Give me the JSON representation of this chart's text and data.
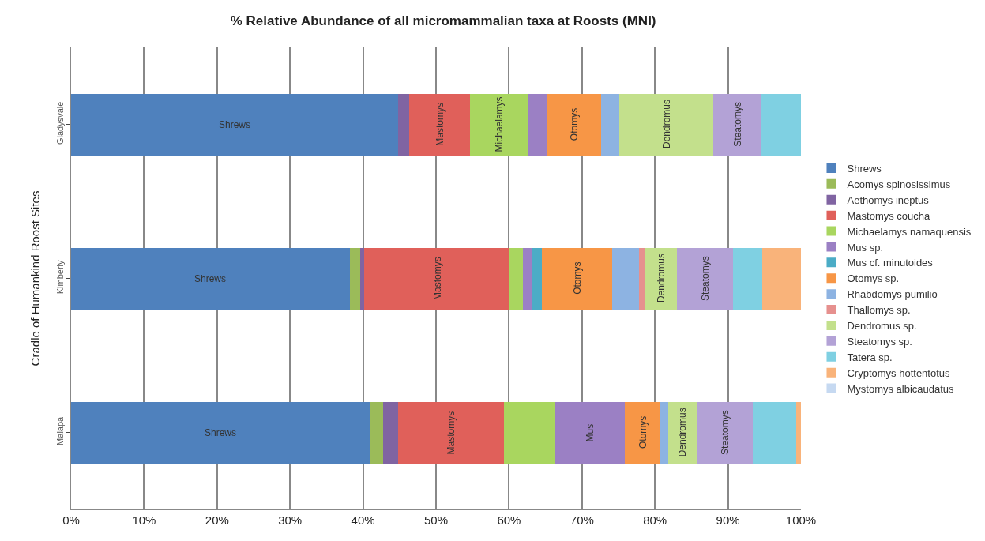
{
  "chart_data": {
    "type": "bar",
    "orientation": "horizontal",
    "stacked": true,
    "title": "% Relative Abundance of all micromammalian taxa at Roosts (MNI)",
    "ylabel": "Cradle of Humankind Roost Sites",
    "categories": [
      "Gladysvale",
      "Kimberly",
      "Malapa"
    ],
    "xlim": [
      0,
      100
    ],
    "xticks": [
      {
        "value": 0,
        "label": "0%"
      },
      {
        "value": 10,
        "label": "10%"
      },
      {
        "value": 20,
        "label": "20%"
      },
      {
        "value": 30,
        "label": "30%"
      },
      {
        "value": 40,
        "label": "40%"
      },
      {
        "value": 50,
        "label": "50%"
      },
      {
        "value": 60,
        "label": "60%"
      },
      {
        "value": 70,
        "label": "70%"
      },
      {
        "value": 80,
        "label": "80%"
      },
      {
        "value": 90,
        "label": "90%"
      },
      {
        "value": 100,
        "label": "100%"
      }
    ],
    "grid": "x",
    "legend": "right",
    "series": [
      {
        "name": "Shrews",
        "color": "#4f81bd",
        "values": [
          44.8,
          38.2,
          40.9
        ],
        "value_labels": [
          "Shrews",
          "Shrews",
          "Shrews"
        ]
      },
      {
        "name": "Acomys spinosissimus",
        "color": "#9bbb59",
        "values": [
          0,
          1.4,
          1.9
        ]
      },
      {
        "name": "Aethomys ineptus",
        "color": "#8064a2",
        "values": [
          1.5,
          0.6,
          2.0
        ]
      },
      {
        "name": "Mastomys coucha",
        "color": "#e0605a",
        "values": [
          8.3,
          19.9,
          14.5
        ],
        "value_labels": [
          "Mastomys",
          "Mastomys",
          "Mastomys"
        ]
      },
      {
        "name": "Michaelamys namaquensis",
        "color": "#a9d65f",
        "values": [
          8.1,
          1.8,
          7.0
        ],
        "value_labels": [
          "Michaelamys",
          null,
          null
        ]
      },
      {
        "name": "Mus sp.",
        "color": "#9b80c4",
        "values": [
          2.5,
          1.2,
          9.6
        ],
        "value_labels": [
          null,
          null,
          "Mus"
        ]
      },
      {
        "name": "Mus cf. minutoides",
        "color": "#4bacc6",
        "values": [
          0,
          1.4,
          0
        ]
      },
      {
        "name": "Otomys sp.",
        "color": "#f79646",
        "values": [
          7.4,
          9.6,
          4.8
        ],
        "value_labels": [
          "Otomys",
          "Otomys",
          "Otomys"
        ]
      },
      {
        "name": "Rhabdomys pumilio",
        "color": "#8db3e2",
        "values": [
          2.5,
          3.7,
          1.1
        ]
      },
      {
        "name": "Thallomys sp.",
        "color": "#e6908e",
        "values": [
          0,
          0.8,
          0
        ]
      },
      {
        "name": "Dendromus sp.",
        "color": "#c3e08c",
        "values": [
          12.9,
          4.4,
          3.9
        ],
        "value_labels": [
          "Dendromus",
          "Dendromus",
          "Dendromus"
        ]
      },
      {
        "name": "Steatomys sp.",
        "color": "#b3a2d6",
        "values": [
          6.5,
          7.7,
          7.7
        ],
        "value_labels": [
          "Steatomys",
          "Steatomys",
          "Steatomys"
        ]
      },
      {
        "name": "Tatera sp.",
        "color": "#7fd0e2",
        "values": [
          5.5,
          4.0,
          6.0
        ]
      },
      {
        "name": "Cryptomys hottentotus",
        "color": "#f9b37a",
        "values": [
          0,
          5.3,
          0.6
        ]
      },
      {
        "name": "Mystomys albicaudatus",
        "color": "#c6d9f1",
        "values": [
          0,
          0,
          0
        ]
      }
    ]
  }
}
